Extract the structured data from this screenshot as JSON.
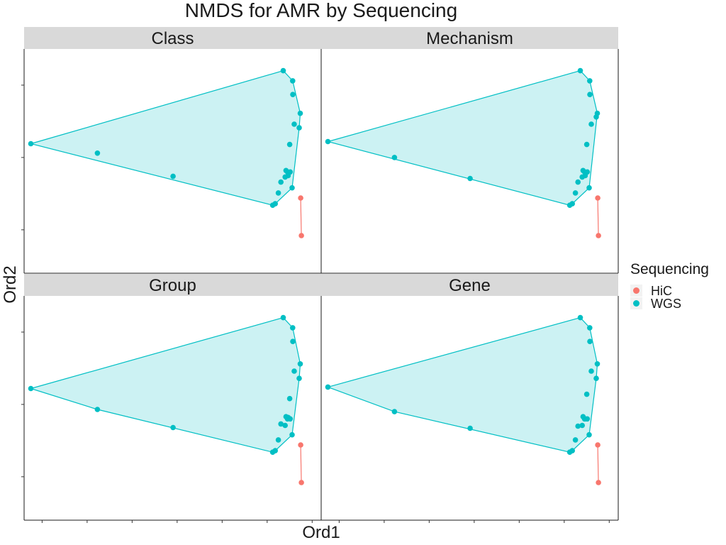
{
  "chart_data": {
    "type": "scatter",
    "title": "NMDS for AMR by Sequencing",
    "xlabel": "Ord1",
    "ylabel": "Ord2",
    "facets": [
      "Class",
      "Mechanism",
      "Group",
      "Gene"
    ],
    "xlim": [
      -2.2,
      1.1
    ],
    "ylim": [
      -1.6,
      1.5
    ],
    "xticks": [
      -2.0,
      -1.5,
      -1.0,
      -0.5,
      0.0,
      0.5,
      1.0
    ],
    "yticks": [
      -1.0,
      0.0,
      1.0
    ],
    "tick_labels_shown": false,
    "grid": false,
    "hull_fill": true,
    "legend": {
      "title": "Sequencing",
      "position": "right",
      "entries": [
        {
          "name": "HiC",
          "color": "#F8766D"
        },
        {
          "name": "WGS",
          "color": "#00BFC4"
        }
      ]
    },
    "series": [
      {
        "name": "HiC",
        "color": "#F8766D",
        "facets": [
          {
            "x": [
              0.872,
              0.88
            ],
            "y": [
              -0.56,
              -1.08
            ]
          },
          {
            "x": [
              0.872,
              0.88
            ],
            "y": [
              -0.56,
              -1.08
            ]
          },
          {
            "x": [
              0.872,
              0.88
            ],
            "y": [
              -0.56,
              -1.08
            ]
          },
          {
            "x": [
              0.872,
              0.88
            ],
            "y": [
              -0.56,
              -1.08
            ]
          }
        ]
      },
      {
        "name": "WGS",
        "color": "#00BFC4",
        "facets": [
          {
            "x": [
              -2.125,
              0.679,
              0.783,
              0.785,
              -1.386,
              -0.545,
              0.561,
              0.59,
              0.624,
              0.653,
              0.733,
              0.709,
              0.726,
              0.7,
              0.777,
              0.756,
              0.75,
              0.801,
              0.856,
              0.868
            ],
            "y": [
              0.19,
              1.2,
              1.06,
              0.87,
              0.06,
              -0.26,
              -0.66,
              -0.64,
              -0.49,
              -0.34,
              -0.25,
              -0.18,
              -0.2,
              -0.27,
              -0.42,
              -0.2,
              0.18,
              0.46,
              0.41,
              0.61
            ]
          },
          {
            "x": [
              -2.125,
              0.679,
              0.783,
              0.785,
              -1.386,
              -0.545,
              0.561,
              0.59,
              0.624,
              0.653,
              0.733,
              0.709,
              0.726,
              0.7,
              0.777,
              0.756,
              0.75,
              0.801,
              0.856,
              0.868
            ],
            "y": [
              0.22,
              1.2,
              1.06,
              0.87,
              0.0,
              -0.29,
              -0.66,
              -0.64,
              -0.49,
              -0.34,
              -0.25,
              -0.18,
              -0.2,
              -0.27,
              -0.42,
              -0.2,
              0.18,
              0.46,
              0.56,
              0.61
            ]
          },
          {
            "x": [
              -2.125,
              0.679,
              0.783,
              0.785,
              -1.386,
              -0.545,
              0.561,
              0.59,
              0.624,
              0.653,
              0.733,
              0.709,
              0.726,
              0.7,
              0.777,
              0.756,
              0.75,
              0.801,
              0.856,
              0.868
            ],
            "y": [
              0.22,
              1.2,
              1.06,
              0.87,
              -0.07,
              -0.32,
              -0.66,
              -0.64,
              -0.49,
              -0.27,
              -0.18,
              -0.17,
              -0.2,
              -0.29,
              -0.42,
              -0.2,
              0.08,
              0.46,
              0.36,
              0.56
            ]
          },
          {
            "x": [
              -2.125,
              0.679,
              0.783,
              0.785,
              -1.386,
              -0.545,
              0.561,
              0.59,
              0.624,
              0.653,
              0.733,
              0.709,
              0.726,
              0.7,
              0.777,
              0.756,
              0.75,
              0.801,
              0.856,
              0.868
            ],
            "y": [
              0.24,
              1.2,
              1.06,
              0.87,
              -0.1,
              -0.33,
              -0.66,
              -0.64,
              -0.49,
              -0.3,
              -0.2,
              -0.17,
              -0.2,
              -0.29,
              -0.42,
              -0.2,
              0.14,
              0.46,
              0.36,
              0.56
            ]
          }
        ]
      }
    ]
  }
}
